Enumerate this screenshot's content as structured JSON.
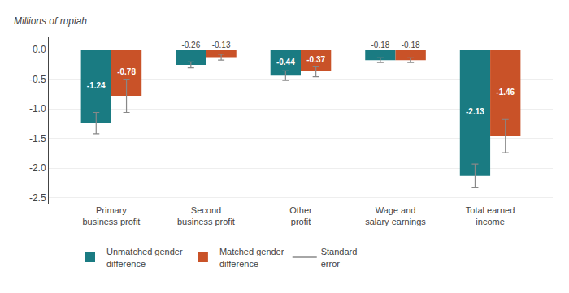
{
  "chart_data": {
    "type": "bar",
    "ylabel": "Millions of rupiah",
    "categories": [
      "Primary\nbusiness profit",
      "Second\nbusiness profit",
      "Other\nprofit",
      "Wage and\nsalary earnings",
      "Total earned\nincome"
    ],
    "series": [
      {
        "name": "Unmatched gender\ndifference",
        "color": "#1a7b82",
        "values": [
          -1.24,
          -0.26,
          -0.44,
          -0.18,
          -2.13
        ],
        "errors": [
          0.18,
          0.05,
          0.08,
          0.04,
          0.2
        ]
      },
      {
        "name": "Matched gender\ndifference",
        "color": "#c95228",
        "values": [
          -0.78,
          -0.13,
          -0.37,
          -0.18,
          -1.46
        ],
        "errors": [
          0.28,
          0.05,
          0.09,
          0.04,
          0.28
        ]
      }
    ],
    "error_bars": {
      "name": "Standard\nerror",
      "color": "#888888"
    },
    "ylim": [
      -2.6,
      0.22
    ],
    "yticks": [
      {
        "value": 0.0,
        "label": "0.0"
      },
      -0.5,
      {
        "value": -1.0,
        "label": "-1.0"
      },
      -1.5,
      {
        "value": -2.0,
        "label": "-2.0"
      },
      -2.5
    ],
    "grid": true,
    "legend": "bottom",
    "data_labels": true
  }
}
